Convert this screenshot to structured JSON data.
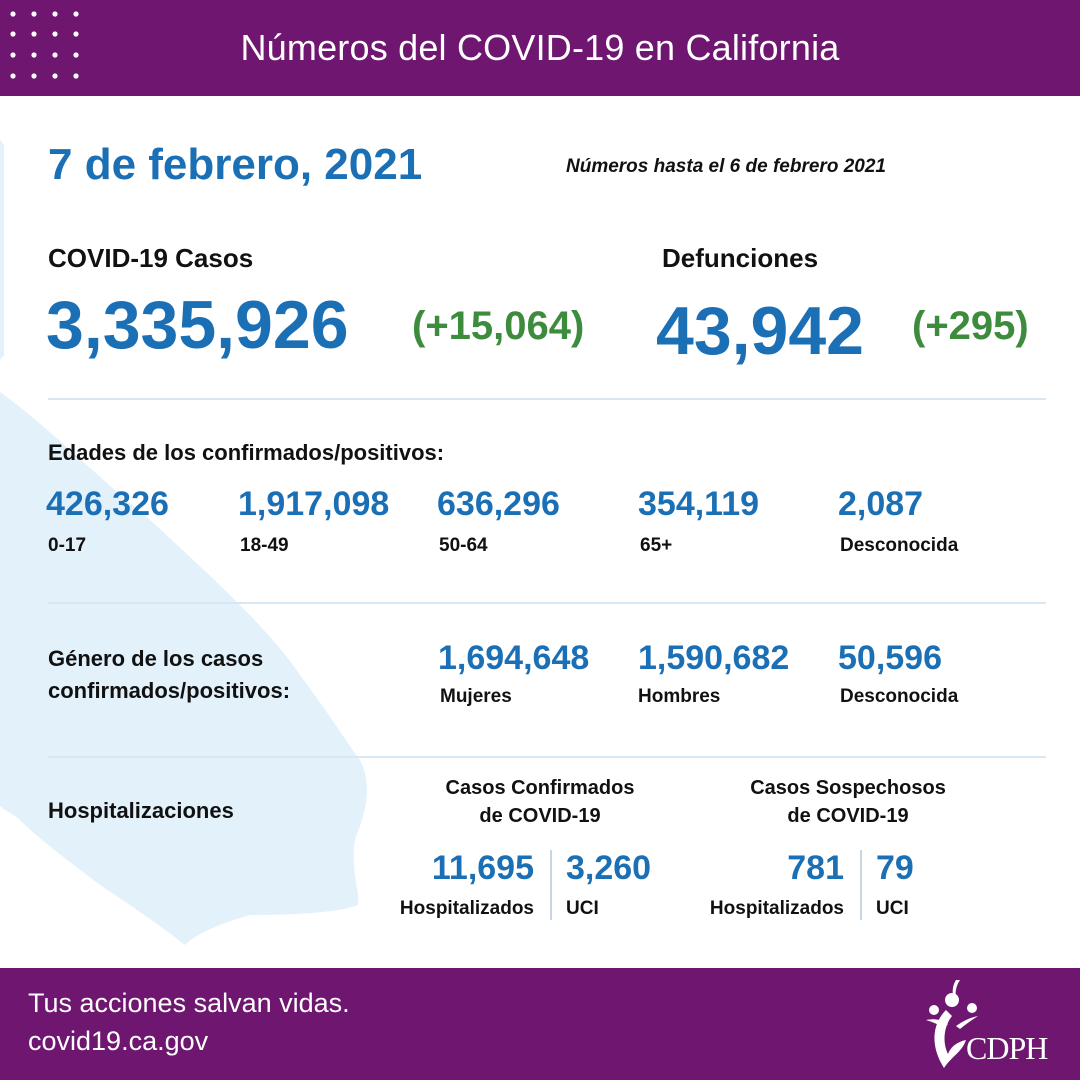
{
  "header": {
    "title": "Números del COVID-19 en California"
  },
  "date": "7 de febrero, 2021",
  "as_of": "Números hasta el 6 de febrero 2021",
  "cases": {
    "label": "COVID-19 Casos",
    "total": "3,335,926",
    "delta": "(+15,064)"
  },
  "deaths": {
    "label": "Defunciones",
    "total": "43,942",
    "delta": "(+295)"
  },
  "ages": {
    "title": "Edades de los confirmados/positivos:",
    "items": [
      {
        "value": "426,326",
        "label": "0-17"
      },
      {
        "value": "1,917,098",
        "label": "18-49"
      },
      {
        "value": "636,296",
        "label": "50-64"
      },
      {
        "value": "354,119",
        "label": "65+"
      },
      {
        "value": "2,087",
        "label": "Desconocida"
      }
    ]
  },
  "gender": {
    "title_line1": "Género de los casos",
    "title_line2": "confirmados/positivos:",
    "items": [
      {
        "value": "1,694,648",
        "label": "Mujeres"
      },
      {
        "value": "1,590,682",
        "label": "Hombres"
      },
      {
        "value": "50,596",
        "label": "Desconocida"
      }
    ]
  },
  "hospital": {
    "title": "Hospitalizaciones",
    "confirmed": {
      "head_line1": "Casos Confirmados",
      "head_line2": "de COVID-19",
      "hosp_value": "11,695",
      "hosp_label": "Hospitalizados",
      "icu_value": "3,260",
      "icu_label": "UCI"
    },
    "suspected": {
      "head_line1": "Casos Sospechosos",
      "head_line2": "de COVID-19",
      "hosp_value": "781",
      "hosp_label": "Hospitalizados",
      "icu_value": "79",
      "icu_label": "UCI"
    }
  },
  "footer": {
    "line1": "Tus acciones salvan vidas.",
    "line2": "covid19.ca.gov",
    "logo_text": "CDPH"
  },
  "colors": {
    "brand_purple": "#6e1670",
    "accent_blue": "#1b6fb5",
    "delta_green": "#3d8b3d",
    "map_fill": "#e3f1fb"
  }
}
